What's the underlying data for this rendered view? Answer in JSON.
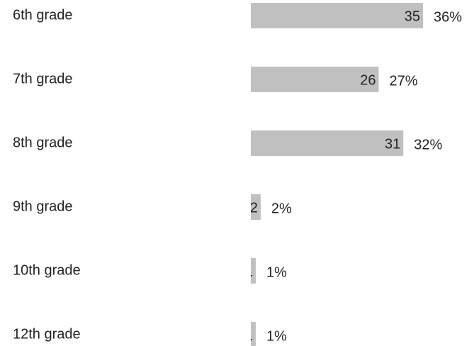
{
  "chart_data": {
    "type": "bar",
    "orientation": "horizontal",
    "categories": [
      "6th grade",
      "7th grade",
      "8th grade",
      "9th grade",
      "10th grade",
      "12th grade"
    ],
    "values": [
      35,
      26,
      31,
      2,
      1,
      1
    ],
    "percentages": [
      36,
      27,
      32,
      2,
      1,
      1
    ],
    "percentage_labels": [
      "36%",
      "27%",
      "32%",
      "2%",
      "1%",
      "1%"
    ],
    "color": "#c0c0c0"
  }
}
